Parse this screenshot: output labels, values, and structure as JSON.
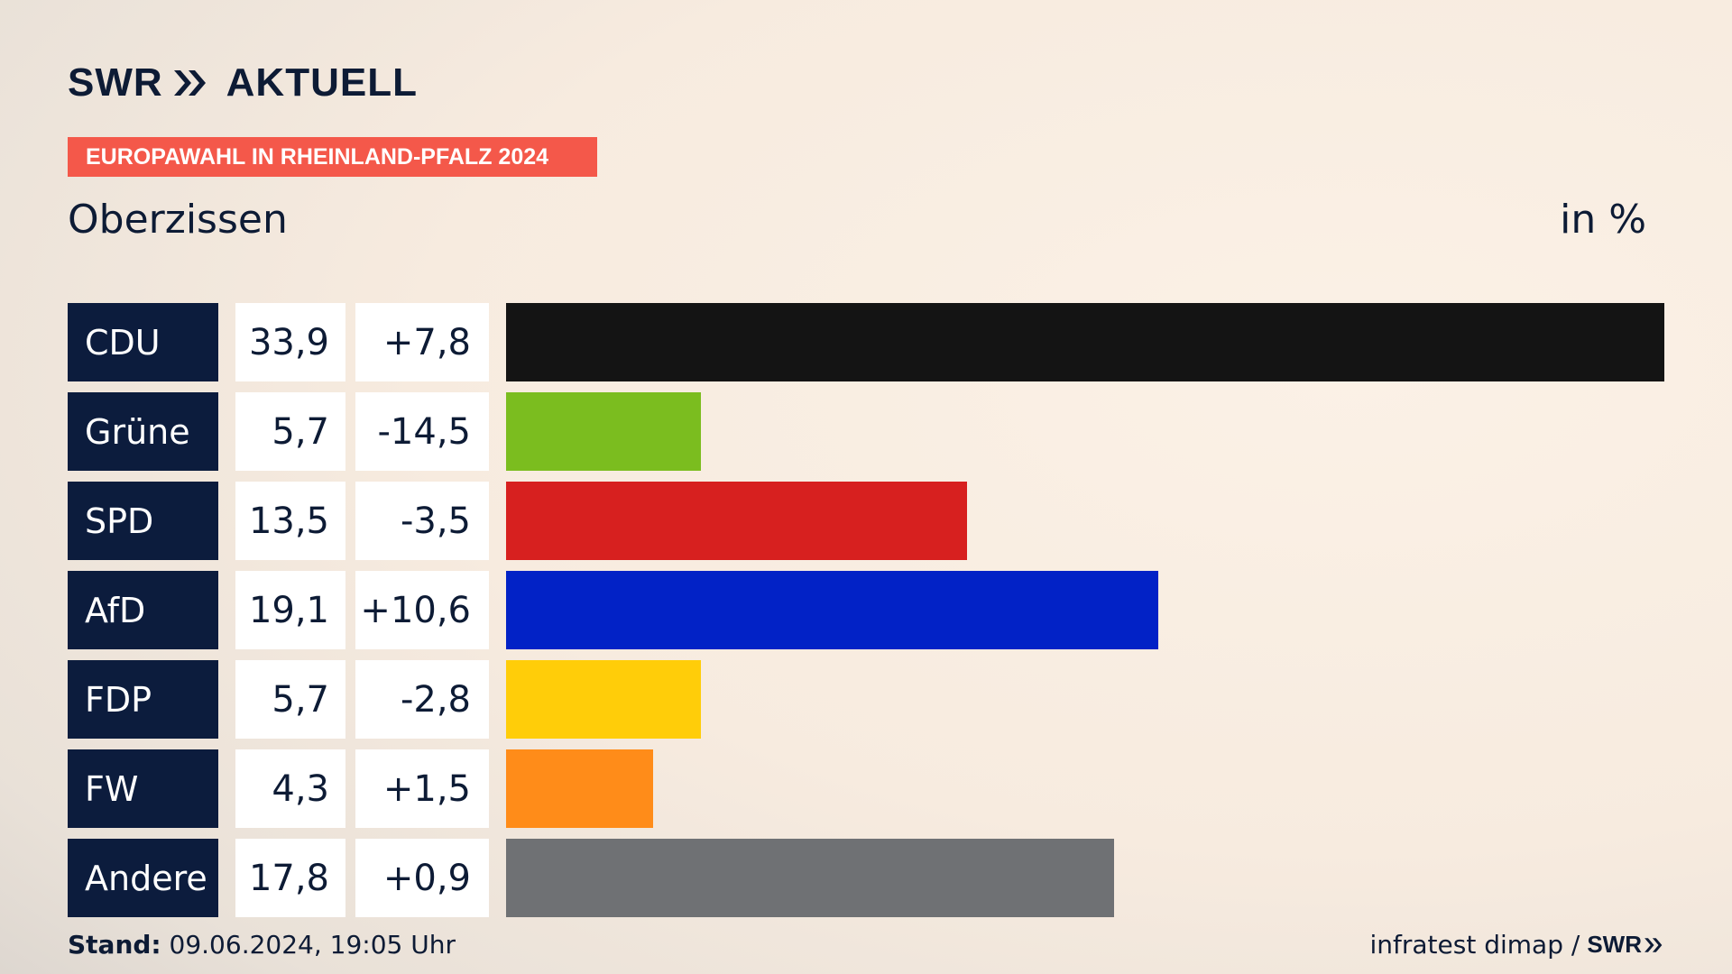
{
  "brand": {
    "swr": "SWR",
    "aktuell": "AKTUELL"
  },
  "election_tag": "EUROPAWAHL IN RHEINLAND-PFALZ 2024",
  "region": "Oberzissen",
  "unit": "in %",
  "colors": {
    "brand_navy": "#0c1c3d",
    "tag_red": "#f4584a"
  },
  "chart_data": {
    "type": "bar",
    "orientation": "horizontal",
    "categories": [
      "CDU",
      "Grüne",
      "SPD",
      "AfD",
      "FDP",
      "FW",
      "Andere"
    ],
    "values": [
      33.9,
      5.7,
      13.5,
      19.1,
      5.7,
      4.3,
      17.8
    ],
    "value_labels": [
      "33,9",
      "5,7",
      "13,5",
      "19,1",
      "5,7",
      "4,3",
      "17,8"
    ],
    "changes": [
      7.8,
      -14.5,
      -3.5,
      10.6,
      -2.8,
      1.5,
      0.9
    ],
    "change_labels": [
      "+7,8",
      "-14,5",
      "-3,5",
      "+10,6",
      "-2,8",
      "+1,5",
      "+0,9"
    ],
    "colors": [
      "#141414",
      "#7bbd1f",
      "#d7201f",
      "#0222c6",
      "#ffcd09",
      "#ff8c19",
      "#6f7174"
    ],
    "xlim": [
      0,
      33.9
    ],
    "grid": false,
    "legend": "none"
  },
  "footer": {
    "stand_label": "Stand:",
    "stand_value": "09.06.2024, 19:05 Uhr",
    "source": "infratest dimap /",
    "source_brand": "SWR"
  }
}
